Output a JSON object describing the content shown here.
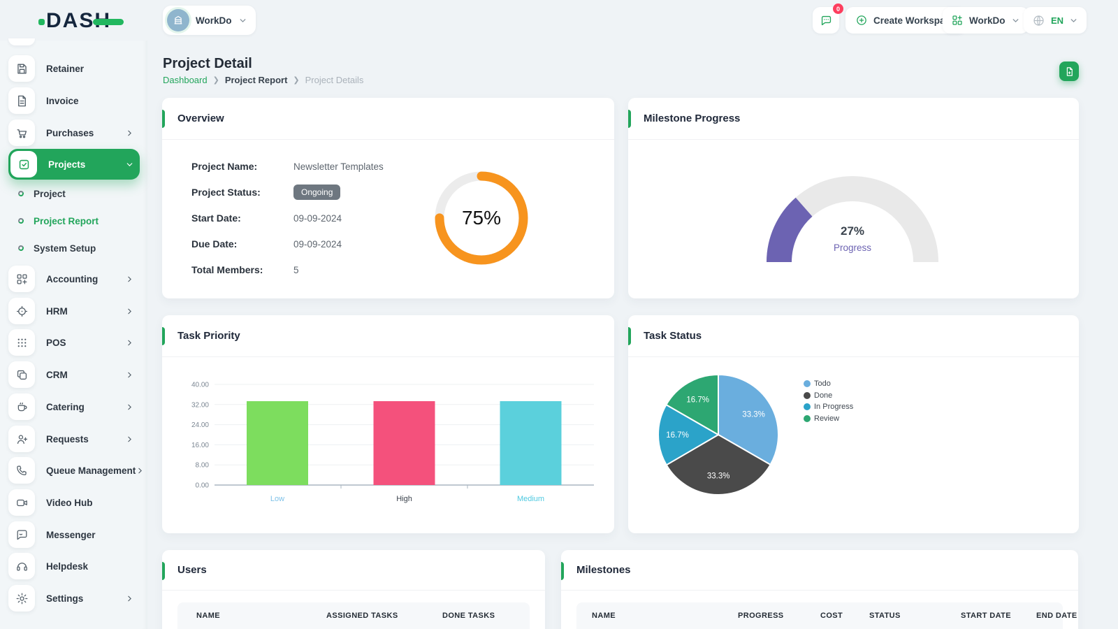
{
  "theme": {
    "primary": "#22a55b",
    "bg": "#eff3f6",
    "card": "#ffffff",
    "danger": "#fd3e5e",
    "badge_gray": "#6e7780"
  },
  "topbar": {
    "logo_text": "DASH",
    "workspace_switcher": {
      "label": "WorkDo"
    },
    "messages_badge": "0",
    "create_workspace_label": "Create Workspace",
    "app_switcher_label": "WorkDo",
    "language_code": "EN"
  },
  "sidebar": {
    "items": [
      {
        "label": "Retainer"
      },
      {
        "label": "Invoice"
      },
      {
        "label": "Purchases",
        "has_children": true
      },
      {
        "label": "Projects",
        "has_children": true,
        "active": true,
        "expanded": true
      },
      {
        "label": "Project",
        "sub": true
      },
      {
        "label": "Project Report",
        "sub": true,
        "active": true
      },
      {
        "label": "System Setup",
        "sub": true
      },
      {
        "label": "Accounting",
        "has_children": true
      },
      {
        "label": "HRM",
        "has_children": true
      },
      {
        "label": "POS",
        "has_children": true
      },
      {
        "label": "CRM",
        "has_children": true
      },
      {
        "label": "Catering",
        "has_children": true
      },
      {
        "label": "Requests",
        "has_children": true
      },
      {
        "label": "Queue Management",
        "has_children": true
      },
      {
        "label": "Video Hub"
      },
      {
        "label": "Messenger"
      },
      {
        "label": "Helpdesk"
      },
      {
        "label": "Settings",
        "has_children": true
      }
    ]
  },
  "page": {
    "title": "Project Detail",
    "breadcrumb": {
      "root": "Dashboard",
      "section": "Project Report",
      "current": "Project Details"
    }
  },
  "overview": {
    "title": "Overview",
    "fields": [
      {
        "label": "Project Name:",
        "value": "Newsletter Templates"
      },
      {
        "label": "Project Status:",
        "value": "Ongoing",
        "badge": true
      },
      {
        "label": "Start Date:",
        "value": "09-09-2024"
      },
      {
        "label": "Due Date:",
        "value": "09-09-2024"
      },
      {
        "label": "Total Members:",
        "value": "5"
      }
    ]
  },
  "milestone_progress_card": {
    "title": "Milestone Progress"
  },
  "task_priority_card": {
    "title": "Task Priority"
  },
  "task_status_card": {
    "title": "Task Status"
  },
  "users_table": {
    "title": "Users",
    "columns": [
      "NAME",
      "ASSIGNED TASKS",
      "DONE TASKS"
    ]
  },
  "milestones_table": {
    "title": "Milestones",
    "columns": [
      "NAME",
      "PROGRESS",
      "COST",
      "STATUS",
      "START DATE",
      "END DATE"
    ]
  },
  "charts": {
    "completion_radial": {
      "type": "radial",
      "value": 75,
      "display": "75%",
      "color": "#f7941e",
      "track": "#ececec"
    },
    "milestone_gauge": {
      "type": "gauge",
      "value": 27,
      "display": "27%",
      "label": "Progress",
      "color": "#6c63b2",
      "track": "#e9e9e9"
    },
    "task_priority": {
      "type": "bar",
      "categories": [
        "Low",
        "High",
        "Medium"
      ],
      "values": [
        33.33,
        33.33,
        33.33
      ],
      "colors": [
        "#7ddd5e",
        "#f4517c",
        "#5bd0dc"
      ],
      "category_label_colors": [
        "#7fc2e8",
        "#3a414b",
        "#4ec9e0"
      ],
      "ylim": [
        0,
        40
      ],
      "ytick_labels": [
        "0.00",
        "8.00",
        "16.00",
        "24.00",
        "32.00",
        "40.00"
      ]
    },
    "task_status": {
      "type": "pie",
      "labels": [
        "Todo",
        "Done",
        "In Progress",
        "Review"
      ],
      "values": [
        33.3,
        33.3,
        16.7,
        16.7
      ],
      "slice_labels": [
        "33.3%",
        "33.3%",
        "16.7%",
        "16.7%"
      ],
      "colors": [
        "#6aaede",
        "#4a4a4a",
        "#2ba3c9",
        "#2da772"
      ]
    }
  }
}
